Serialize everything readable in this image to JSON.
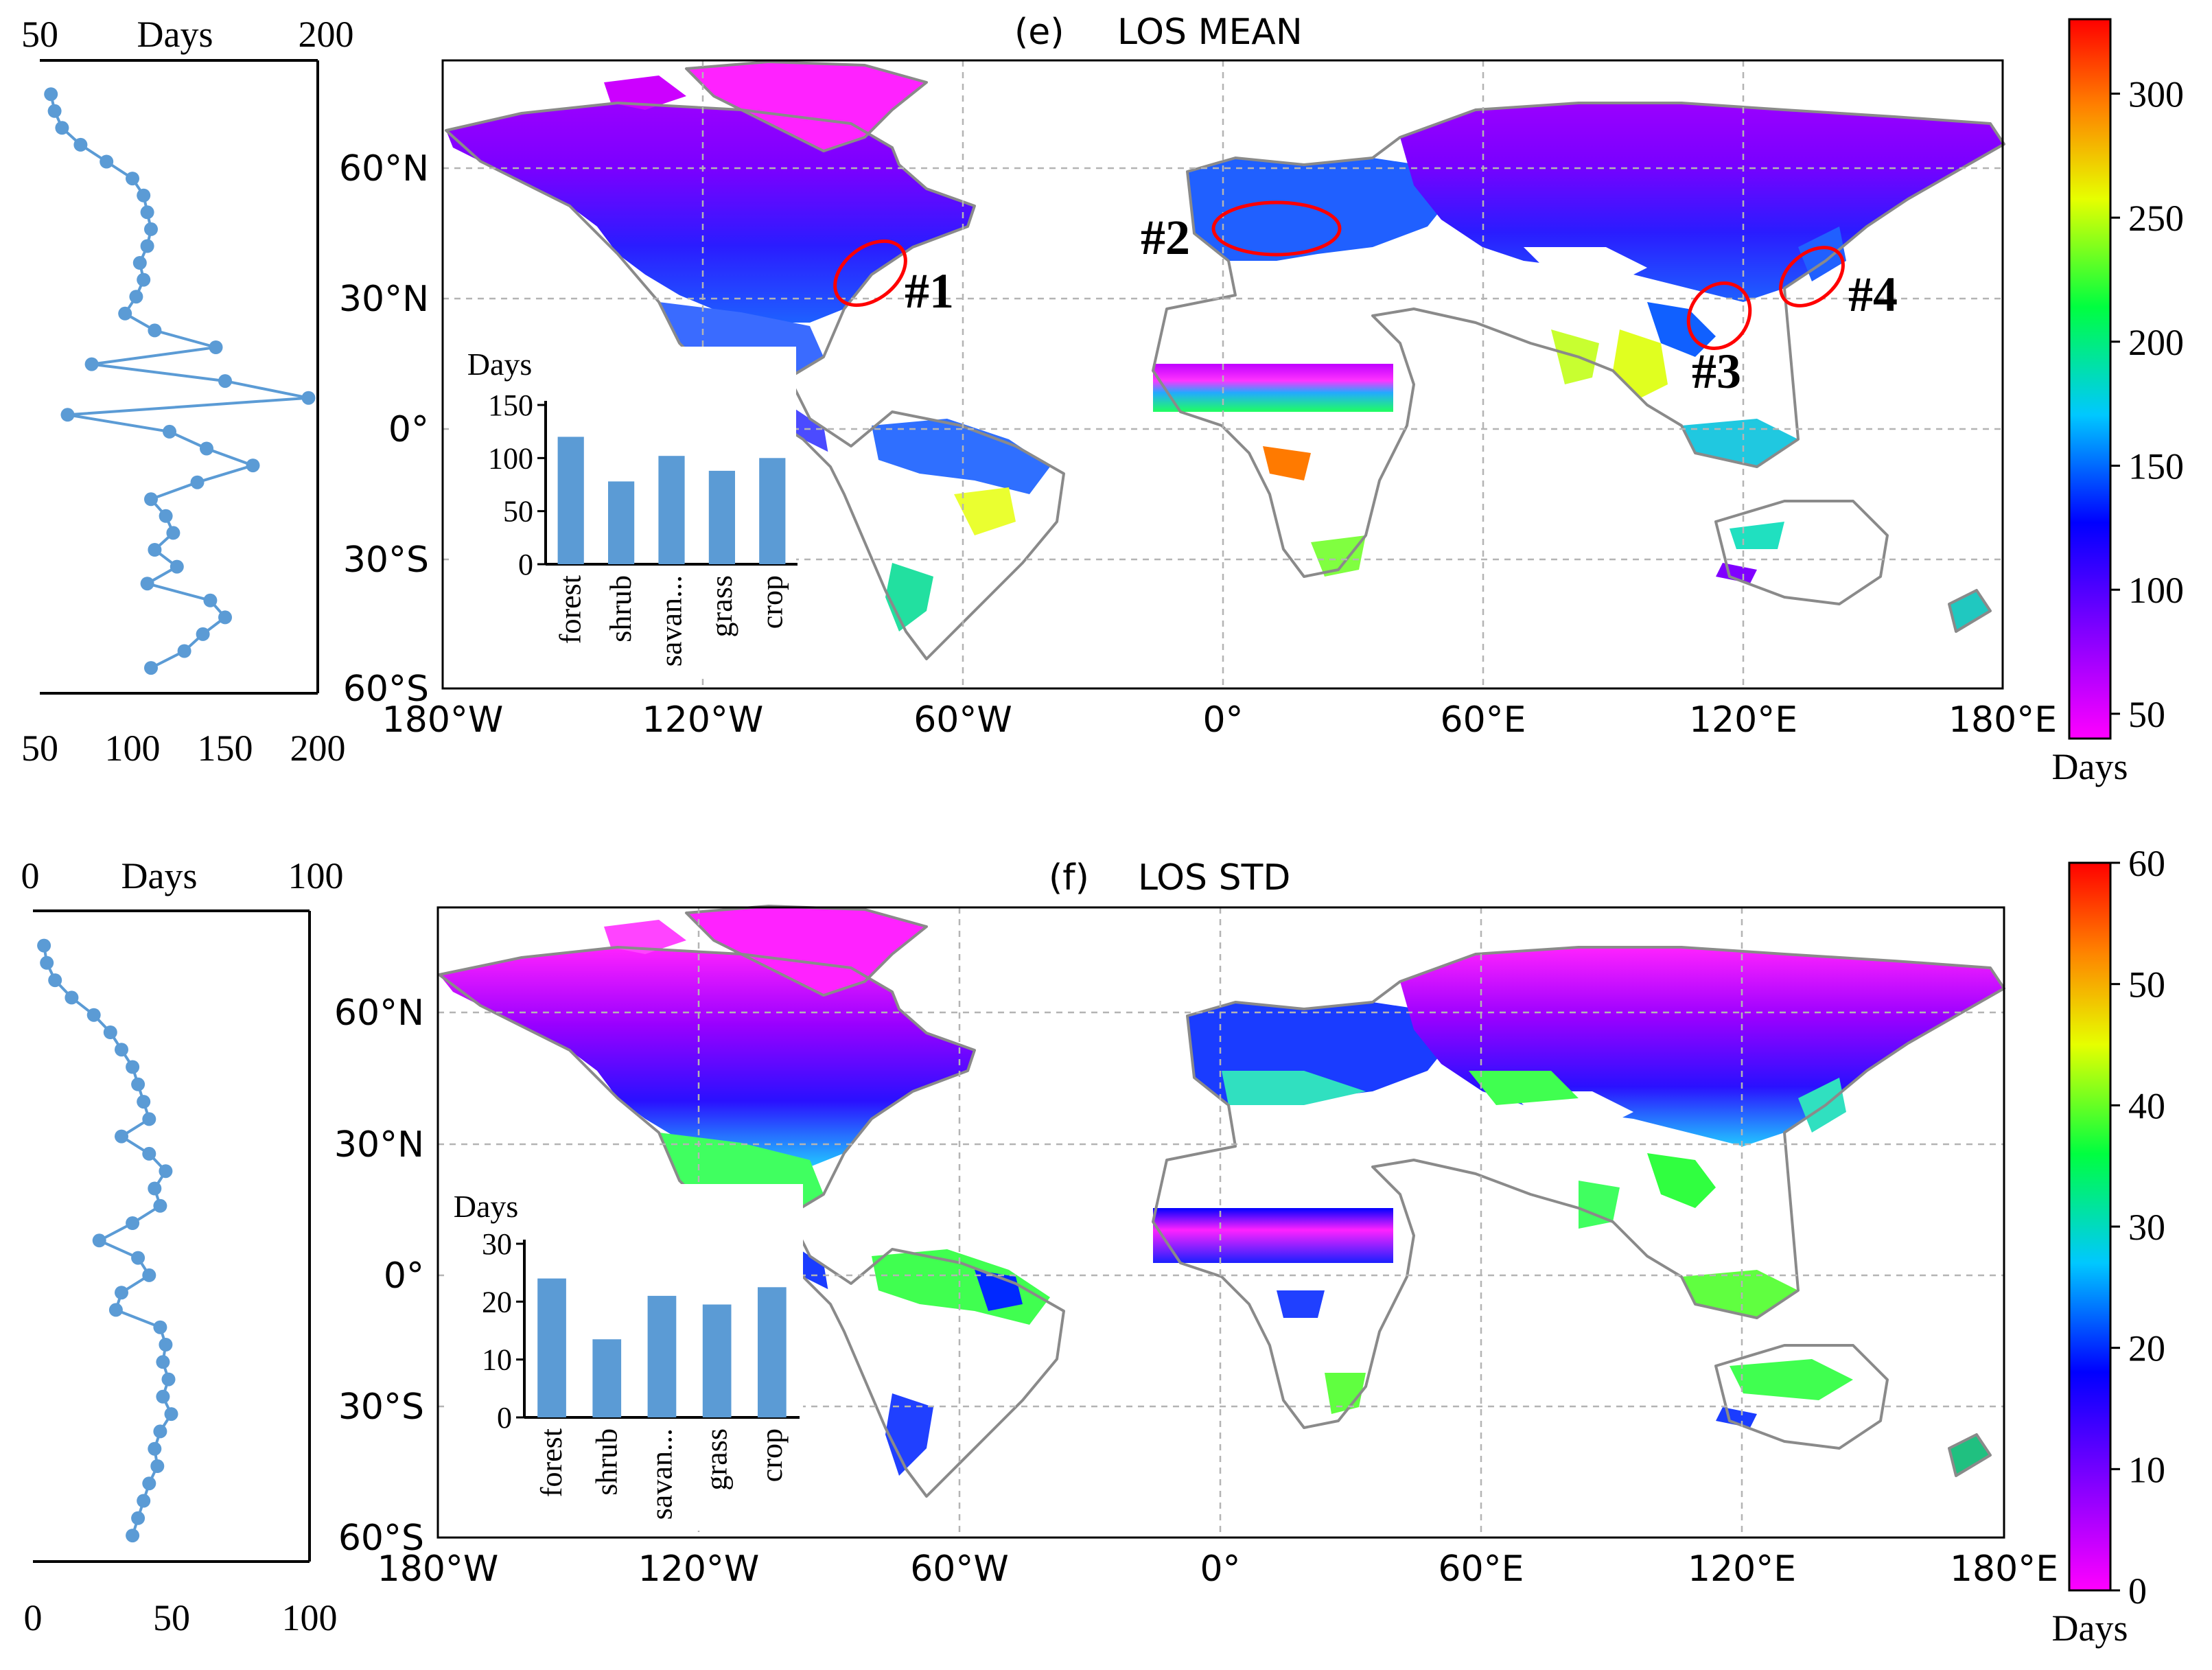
{
  "chart_data": [
    {
      "type": "map",
      "panel": "(e)",
      "title": "LOS MEAN",
      "colorbar": {
        "ticks": [
          50,
          100,
          150,
          200,
          250,
          300
        ],
        "range": [
          40,
          330
        ],
        "label": "Days"
      },
      "longitude_ticks": [
        "180°W",
        "120°W",
        "60°W",
        "0°",
        "60°E",
        "120°E",
        "180°E"
      ],
      "latitude_ticks": [
        "60°N",
        "30°N",
        "0°",
        "30°S",
        "60°S"
      ],
      "regions": [
        "#1",
        "#2",
        "#3",
        "#4"
      ],
      "latitude_profile": {
        "type": "line",
        "xlabel": "Days",
        "xlim": [
          50,
          200
        ],
        "top_ticks": [
          "50",
          "200"
        ],
        "bottom_ticks": [
          "50",
          "100",
          "150",
          "200"
        ],
        "lat": [
          82,
          78,
          74,
          70,
          66,
          62,
          58,
          54,
          50,
          46,
          42,
          38,
          34,
          30,
          26,
          22,
          18,
          14,
          10,
          6,
          2,
          -2,
          -6,
          -10,
          -14,
          -18,
          -22,
          -26,
          -30,
          -34,
          -38,
          -42,
          -46,
          -50,
          -54
        ],
        "values": [
          56,
          58,
          62,
          72,
          86,
          100,
          106,
          108,
          110,
          108,
          104,
          106,
          102,
          96,
          112,
          145,
          78,
          150,
          195,
          65,
          120,
          140,
          165,
          135,
          110,
          118,
          122,
          112,
          124,
          108,
          142,
          150,
          138,
          128,
          110
        ]
      },
      "inset_bar": {
        "type": "bar",
        "ylabel": "Days",
        "categories": [
          "forest",
          "shrub",
          "savan...",
          "grass",
          "crop"
        ],
        "values": [
          120,
          78,
          102,
          88,
          100
        ],
        "ylim": [
          0,
          150
        ],
        "yticks": [
          0,
          50,
          100,
          150
        ]
      }
    },
    {
      "type": "map",
      "panel": "(f)",
      "title": "LOS STD",
      "colorbar": {
        "ticks": [
          0,
          10,
          20,
          30,
          40,
          50,
          60
        ],
        "range": [
          0,
          60
        ],
        "label": "Days"
      },
      "longitude_ticks": [
        "180°W",
        "120°W",
        "60°W",
        "0°",
        "60°E",
        "120°E",
        "180°E"
      ],
      "latitude_ticks": [
        "60°N",
        "30°N",
        "0°",
        "30°S",
        "60°S"
      ],
      "latitude_profile": {
        "type": "line",
        "xlabel": "Days",
        "xlim": [
          0,
          100
        ],
        "top_ticks": [
          "0",
          "100"
        ],
        "bottom_ticks": [
          "0",
          "50",
          "100"
        ],
        "lat": [
          82,
          78,
          74,
          70,
          66,
          62,
          58,
          54,
          50,
          46,
          42,
          38,
          34,
          30,
          26,
          22,
          18,
          14,
          10,
          6,
          2,
          -2,
          -6,
          -10,
          -14,
          -18,
          -22,
          -26,
          -30,
          -34,
          -38,
          -42,
          -46,
          -50,
          -54
        ],
        "values": [
          4,
          5,
          8,
          14,
          22,
          28,
          32,
          36,
          38,
          40,
          42,
          32,
          42,
          48,
          44,
          46,
          36,
          24,
          38,
          42,
          32,
          30,
          46,
          48,
          47,
          49,
          47,
          50,
          46,
          44,
          45,
          42,
          40,
          38,
          36
        ]
      },
      "inset_bar": {
        "type": "bar",
        "ylabel": "Days",
        "categories": [
          "forest",
          "shrub",
          "savan...",
          "grass",
          "crop"
        ],
        "values": [
          24,
          13.5,
          21,
          19.5,
          22.5
        ],
        "ylim": [
          0,
          30
        ],
        "yticks": [
          0,
          10,
          20,
          30
        ]
      }
    }
  ]
}
